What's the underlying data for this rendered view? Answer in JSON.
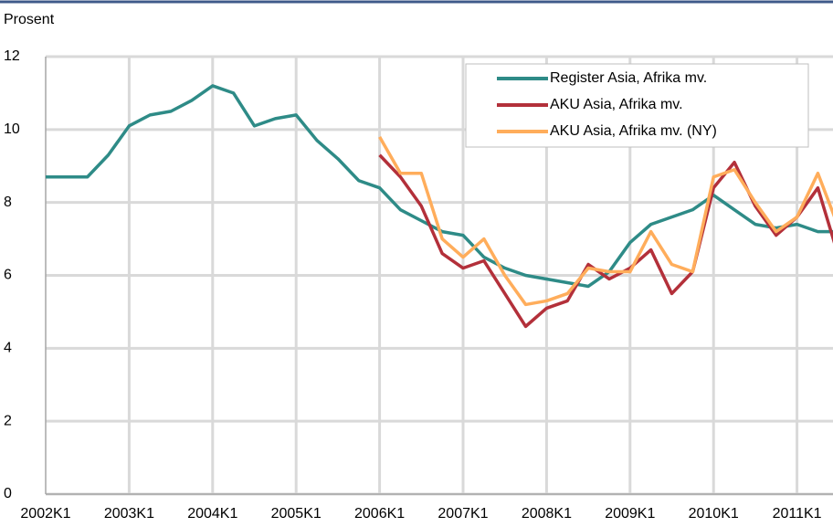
{
  "chart_data": {
    "type": "line",
    "y_label": "Prosent",
    "categories": [
      "2002K1",
      null,
      null,
      null,
      "2003K1",
      null,
      null,
      null,
      "2004K1",
      null,
      null,
      null,
      "2005K1",
      null,
      null,
      null,
      "2006K1",
      null,
      null,
      null,
      "2007K1",
      null,
      null,
      null,
      "2008K1",
      null,
      null,
      null,
      "2009K1",
      null,
      null,
      null,
      "2010K1",
      null,
      null,
      null,
      "2011K1",
      null,
      null
    ],
    "series": [
      {
        "name": "Register Asia, Afrika mv.",
        "color": "#2e8b87",
        "values": [
          8.7,
          8.7,
          8.7,
          9.3,
          10.1,
          10.4,
          10.5,
          10.8,
          11.2,
          11.0,
          10.1,
          10.3,
          10.4,
          9.7,
          9.2,
          8.6,
          8.4,
          7.8,
          7.5,
          7.2,
          7.1,
          6.5,
          6.2,
          6.0,
          5.9,
          5.8,
          5.7,
          6.1,
          6.9,
          7.4,
          7.6,
          7.8,
          8.2,
          7.8,
          7.4,
          7.3,
          7.4,
          7.2,
          7.2
        ]
      },
      {
        "name": "AKU Asia, Afrika mv.",
        "color": "#b3303a",
        "values": [
          null,
          null,
          null,
          null,
          null,
          null,
          null,
          null,
          null,
          null,
          null,
          null,
          null,
          null,
          null,
          null,
          9.3,
          8.7,
          7.9,
          6.6,
          6.2,
          6.4,
          5.5,
          4.6,
          5.1,
          5.3,
          6.3,
          5.9,
          6.2,
          6.7,
          5.5,
          6.1,
          8.4,
          9.1,
          7.9,
          7.1,
          7.6,
          8.4,
          6.5
        ]
      },
      {
        "name": "AKU Asia, Afrika mv. (NY)",
        "color": "#ffad5b",
        "values": [
          null,
          null,
          null,
          null,
          null,
          null,
          null,
          null,
          null,
          null,
          null,
          null,
          null,
          null,
          null,
          null,
          9.8,
          8.8,
          8.8,
          7.0,
          6.5,
          7.0,
          6.0,
          5.2,
          5.3,
          5.5,
          6.2,
          6.1,
          6.1,
          7.2,
          6.3,
          6.1,
          8.7,
          8.9,
          8.0,
          7.2,
          7.6,
          8.8,
          7.3
        ]
      }
    ],
    "ylim": [
      0,
      12
    ],
    "yticks": [
      0,
      2,
      4,
      6,
      8,
      10,
      12
    ],
    "grid": true,
    "legend": "top-right"
  }
}
